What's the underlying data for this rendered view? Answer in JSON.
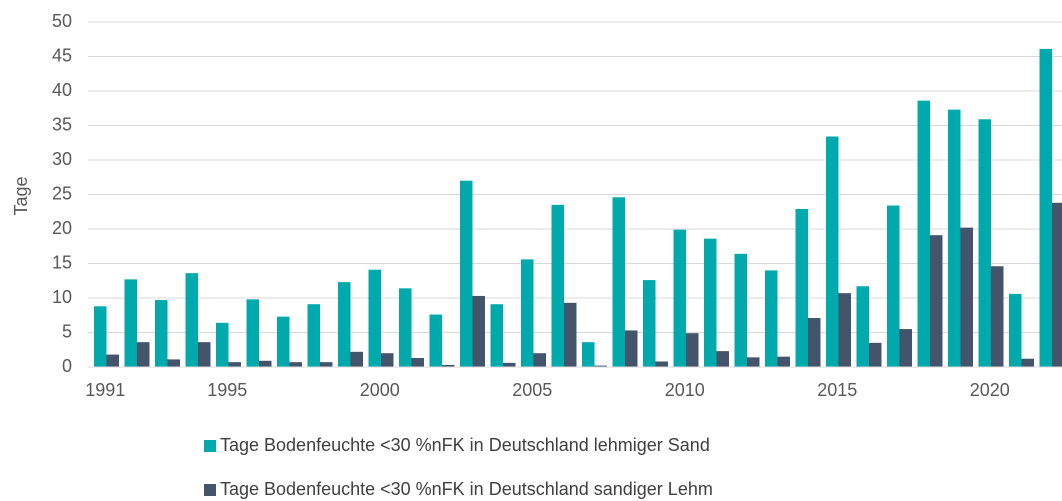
{
  "chart_data": {
    "type": "bar",
    "ylabel": "Tage",
    "categories": [
      "1991",
      null,
      null,
      null,
      "1995",
      null,
      null,
      null,
      null,
      "2000",
      null,
      null,
      null,
      null,
      "2005",
      null,
      null,
      null,
      null,
      "2010",
      null,
      null,
      null,
      null,
      "2015",
      null,
      null,
      null,
      null,
      "2020",
      null,
      null
    ],
    "series": [
      {
        "name": "Tage Bodenfeuchte <30 %nFK in Deutschland lehmiger Sand",
        "color": "#00a9ab",
        "values": [
          8.8,
          12.7,
          9.7,
          13.6,
          6.4,
          9.8,
          7.3,
          9.1,
          12.3,
          14.1,
          11.4,
          7.6,
          27,
          9.1,
          15.6,
          23.5,
          3.6,
          24.6,
          12.6,
          19.9,
          18.6,
          16.4,
          14,
          22.9,
          33.4,
          11.7,
          23.4,
          38.6,
          37.3,
          35.9,
          10.6,
          46.1
        ]
      },
      {
        "name": "Tage Bodenfeuchte <30 %nFK in Deutschland sandiger Lehm",
        "color": "#44546a",
        "values": [
          1.8,
          3.6,
          1.1,
          3.6,
          0.7,
          0.9,
          0.7,
          0.7,
          2.2,
          2.0,
          1.3,
          0.3,
          10.3,
          0.6,
          2.0,
          9.3,
          0.2,
          5.3,
          0.8,
          4.9,
          2.3,
          1.4,
          1.5,
          7.1,
          10.7,
          3.5,
          5.5,
          19.1,
          20.2,
          14.6,
          1.2,
          23.8
        ]
      }
    ],
    "ylim": [
      0,
      50
    ],
    "yticks": [
      0,
      5,
      10,
      15,
      20,
      25,
      30,
      35,
      40,
      45,
      50
    ],
    "grid": true,
    "legend": "bottom"
  }
}
